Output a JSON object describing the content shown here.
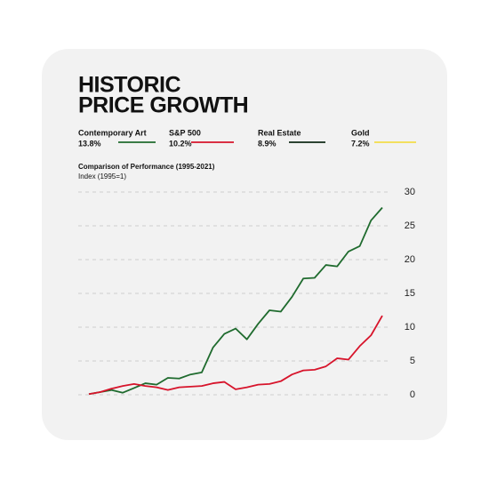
{
  "chart_data": {
    "type": "line",
    "title": [
      "HISTORIC",
      "PRICE GROWTH"
    ],
    "legend": [
      {
        "name": "Contemporary Art",
        "rate": "13.8%",
        "color": "#1f6b2e"
      },
      {
        "name": "S&P 500",
        "rate": "10.2%",
        "color": "#d7142b"
      },
      {
        "name": "Real Estate",
        "rate": "8.9%",
        "color": "#0f2a17"
      },
      {
        "name": "Gold",
        "rate": "7.2%",
        "color": "#f3dc4a"
      }
    ],
    "subtitle": "Comparison of Performance (1995-2021)",
    "axis_label": "Index (1995=1)",
    "categories": [
      null,
      null,
      null,
      null,
      null,
      null,
      null,
      null,
      null,
      null,
      null,
      null,
      null,
      null,
      null,
      null,
      null,
      null,
      null,
      null,
      null,
      null,
      null,
      null,
      null,
      null,
      null
    ],
    "series": [
      {
        "color": "#1f6b2e",
        "values": [
          0.1,
          0.4,
          0.7,
          0.3,
          1.0,
          1.7,
          1.5,
          2.5,
          2.4,
          3.0,
          3.3,
          7.0,
          9.0,
          9.8,
          8.2,
          10.5,
          12.5,
          12.3,
          14.5,
          17.2,
          17.3,
          19.2,
          19.0,
          21.2,
          22.0,
          25.8,
          27.7
        ]
      },
      {
        "color": "#d7142b",
        "values": [
          0.1,
          0.4,
          0.9,
          1.3,
          1.6,
          1.3,
          1.1,
          0.7,
          1.1,
          1.2,
          1.3,
          1.7,
          1.9,
          0.8,
          1.1,
          1.5,
          1.6,
          2.0,
          3.0,
          3.6,
          3.7,
          4.2,
          5.4,
          5.2,
          7.2,
          8.8,
          11.7
        ]
      }
    ],
    "ylim": [
      0,
      30
    ],
    "yticks": [
      0,
      5,
      10,
      15,
      20,
      25,
      30
    ],
    "grid": true
  }
}
